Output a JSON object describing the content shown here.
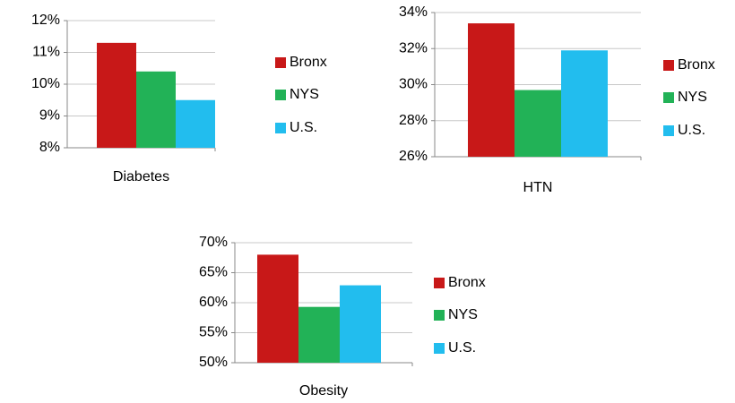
{
  "chart_data": [
    {
      "type": "bar",
      "categories": [
        "Diabetes"
      ],
      "series": [
        {
          "name": "Bronx",
          "color": "#c81818",
          "values": [
            11.3
          ]
        },
        {
          "name": "NYS",
          "color": "#22b257",
          "values": [
            10.4
          ]
        },
        {
          "name": "U.S.",
          "color": "#22bdee",
          "values": [
            9.5
          ]
        }
      ],
      "ylim": [
        8,
        12
      ],
      "yticks": [
        {
          "value": 8,
          "label": "8%"
        },
        {
          "value": 9,
          "label": "9%"
        },
        {
          "value": 10,
          "label": "10%"
        },
        {
          "value": 11,
          "label": "11%"
        },
        {
          "value": 12,
          "label": "12%"
        }
      ],
      "grid": true,
      "legend": "right"
    },
    {
      "type": "bar",
      "categories": [
        "HTN"
      ],
      "series": [
        {
          "name": "Bronx",
          "color": "#c81818",
          "values": [
            33.4
          ]
        },
        {
          "name": "NYS",
          "color": "#22b257",
          "values": [
            29.7
          ]
        },
        {
          "name": "U.S.",
          "color": "#22bdee",
          "values": [
            31.9
          ]
        }
      ],
      "ylim": [
        26,
        34
      ],
      "yticks": [
        {
          "value": 26,
          "label": "26%"
        },
        {
          "value": 28,
          "label": "28%"
        },
        {
          "value": 30,
          "label": "30%"
        },
        {
          "value": 32,
          "label": "32%"
        },
        {
          "value": 34,
          "label": "34%"
        }
      ],
      "grid": true,
      "legend": "right"
    },
    {
      "type": "bar",
      "categories": [
        "Obesity"
      ],
      "series": [
        {
          "name": "Bronx",
          "color": "#c81818",
          "values": [
            68
          ]
        },
        {
          "name": "NYS",
          "color": "#22b257",
          "values": [
            59.3
          ]
        },
        {
          "name": "U.S.",
          "color": "#22bdee",
          "values": [
            62.9
          ]
        }
      ],
      "ylim": [
        50,
        70
      ],
      "yticks": [
        {
          "value": 50,
          "label": "50%"
        },
        {
          "value": 55,
          "label": "55%"
        },
        {
          "value": 60,
          "label": "60%"
        },
        {
          "value": 65,
          "label": "65%"
        },
        {
          "value": 70,
          "label": "70%"
        }
      ],
      "grid": true,
      "legend": "right"
    }
  ]
}
